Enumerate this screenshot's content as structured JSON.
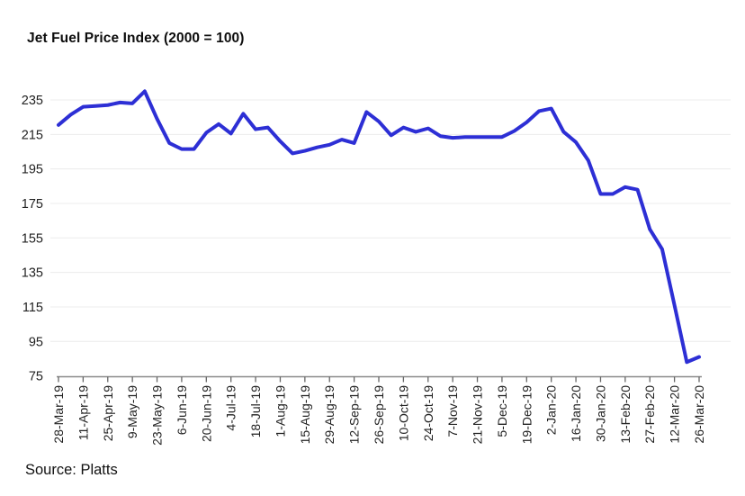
{
  "title": "Jet Fuel Price Index (2000 = 100)",
  "source": "Source: Platts",
  "chart_data": {
    "type": "line",
    "title": "Jet Fuel Price Index (2000 = 100)",
    "source": "Source: Platts",
    "series_name": "Jet Fuel Price Index",
    "x": [
      "28-Mar-19",
      "4-Apr-19",
      "11-Apr-19",
      "18-Apr-19",
      "25-Apr-19",
      "2-May-19",
      "9-May-19",
      "16-May-19",
      "23-May-19",
      "30-May-19",
      "6-Jun-19",
      "13-Jun-19",
      "20-Jun-19",
      "27-Jun-19",
      "4-Jul-19",
      "11-Jul-19",
      "18-Jul-19",
      "25-Jul-19",
      "1-Aug-19",
      "8-Aug-19",
      "15-Aug-19",
      "22-Aug-19",
      "29-Aug-19",
      "5-Sep-19",
      "12-Sep-19",
      "19-Sep-19",
      "26-Sep-19",
      "3-Oct-19",
      "10-Oct-19",
      "17-Oct-19",
      "24-Oct-19",
      "31-Oct-19",
      "7-Nov-19",
      "14-Nov-19",
      "21-Nov-19",
      "28-Nov-19",
      "5-Dec-19",
      "12-Dec-19",
      "19-Dec-19",
      "26-Dec-19",
      "2-Jan-20",
      "9-Jan-20",
      "16-Jan-20",
      "23-Jan-20",
      "30-Jan-20",
      "6-Feb-20",
      "13-Feb-20",
      "20-Feb-20",
      "27-Feb-20",
      "5-Mar-20",
      "12-Mar-20",
      "19-Mar-20",
      "26-Mar-20"
    ],
    "values": [
      220.5,
      226.5,
      231,
      231.5,
      232,
      233.5,
      233,
      240,
      224,
      210,
      206.5,
      206.5,
      216,
      221,
      215.5,
      227,
      218,
      219,
      211,
      204,
      205.5,
      207.5,
      209,
      212,
      210,
      228,
      222.5,
      214.5,
      219,
      216.5,
      218.5,
      214,
      213,
      213.5,
      213.5,
      213.5,
      213.5,
      217,
      222,
      228.5,
      230,
      216.5,
      210.5,
      200,
      180.5,
      180.5,
      184.5,
      183,
      160,
      148.5,
      116,
      83,
      86
    ],
    "x_tick_labels": [
      "28-Mar-19",
      "11-Apr-19",
      "25-Apr-19",
      "9-May-19",
      "23-May-19",
      "6-Jun-19",
      "20-Jun-19",
      "4-Jul-19",
      "18-Jul-19",
      "1-Aug-19",
      "15-Aug-19",
      "29-Aug-19",
      "12-Sep-19",
      "26-Sep-19",
      "10-Oct-19",
      "24-Oct-19",
      "7-Nov-19",
      "21-Nov-19",
      "5-Dec-19",
      "19-Dec-19",
      "2-Jan-20",
      "16-Jan-20",
      "30-Jan-20",
      "13-Feb-20",
      "27-Feb-20",
      "12-Mar-20",
      "26-Mar-20"
    ],
    "x_tick_every": 2,
    "y_ticks": [
      235,
      215,
      195,
      175,
      155,
      135,
      115,
      95,
      75
    ],
    "ylim": [
      75,
      235
    ],
    "grid": true,
    "legend_position": "none",
    "line_color": "#2d2fd5",
    "grid_color": "#ececec",
    "axis_color": "#8a8a8a",
    "tick_color": "#666666",
    "text_color": "#222222"
  }
}
